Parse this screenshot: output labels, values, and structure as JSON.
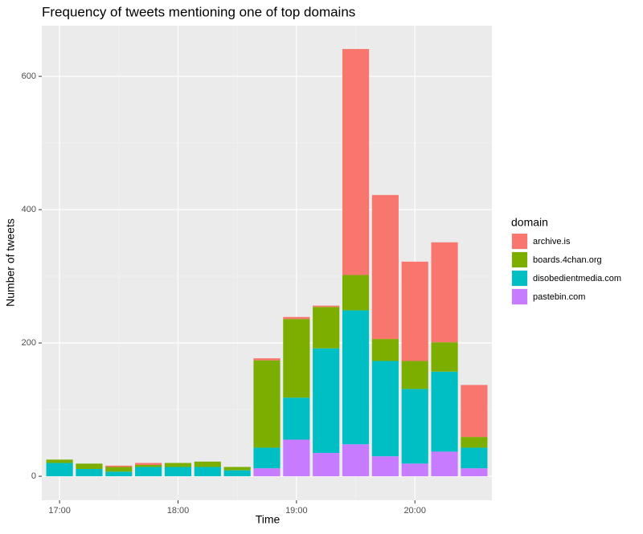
{
  "chart_data": {
    "type": "stacked_bar",
    "title": "Frequency of tweets mentioning one of top domains",
    "x_label": "Time",
    "y_label": "Number of tweets",
    "legend_title": "domain",
    "legend": "right",
    "grid": true,
    "categories": [
      "17:00",
      null,
      null,
      null,
      "18:00",
      null,
      null,
      null,
      "19:00",
      null,
      null,
      null,
      "20:00",
      null,
      null
    ],
    "series": [
      {
        "name": "archive.is",
        "color": "#F8766D",
        "values": [
          0,
          0,
          2,
          3,
          0,
          0,
          0,
          3,
          3,
          2,
          339,
          216,
          149,
          150,
          78
        ]
      },
      {
        "name": "boards.4chan.org",
        "color": "#7CAE00",
        "values": [
          5,
          8,
          7,
          3,
          6,
          8,
          5,
          131,
          118,
          62,
          53,
          33,
          42,
          44,
          16
        ]
      },
      {
        "name": "disobedientmedia.com",
        "color": "#00BFC4",
        "values": [
          20,
          11,
          7,
          14,
          14,
          14,
          9,
          31,
          63,
          157,
          201,
          143,
          112,
          120,
          31
        ]
      },
      {
        "name": "pastebin.com",
        "color": "#C77CFF",
        "values": [
          0,
          0,
          0,
          0,
          0,
          0,
          0,
          12,
          55,
          35,
          48,
          30,
          19,
          37,
          12
        ]
      }
    ],
    "ylim": [
      -36,
      676
    ],
    "yticks": [
      0,
      200,
      400,
      600
    ]
  }
}
